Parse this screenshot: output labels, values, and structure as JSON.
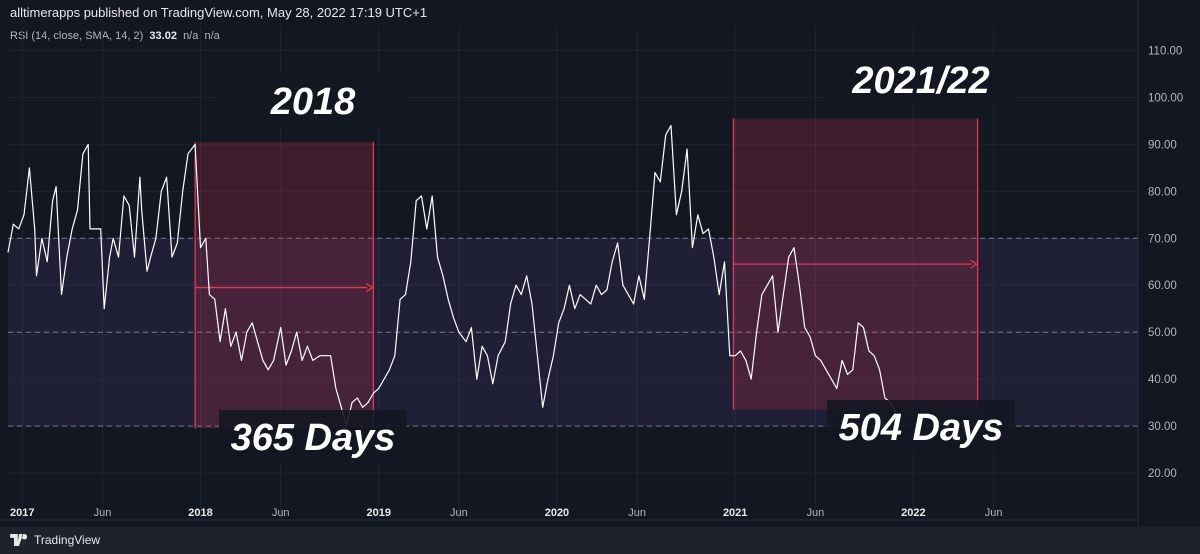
{
  "header": {
    "published": "alltimerapps published on TradingView.com, May 28, 2022 17:19 UTC+1",
    "indicator_label": "RSI (14, close, SMA, 14, 2)",
    "indicator_value": "33.02",
    "indicator_na1": "n/a",
    "indicator_na2": "n/a"
  },
  "footer": {
    "brand": "TradingView"
  },
  "colors": {
    "background": "#131722",
    "band": "#7e57c2",
    "line": "#ffffff",
    "highlight": "#e53950"
  },
  "chart_data": {
    "type": "line",
    "title": "",
    "ylim": [
      10,
      115
    ],
    "yticks": [
      20,
      30,
      40,
      50,
      60,
      70,
      80,
      90,
      100,
      110
    ],
    "ytick_labels": [
      "20.00",
      "30.00",
      "40.00",
      "50.00",
      "60.00",
      "70.00",
      "80.00",
      "90.00",
      "100.00",
      "110.00"
    ],
    "xticks": [
      {
        "x": 2017.0,
        "label": "2017",
        "bold": true
      },
      {
        "x": 2017.45,
        "label": "Jun",
        "bold": false
      },
      {
        "x": 2018.0,
        "label": "2018",
        "bold": true
      },
      {
        "x": 2018.45,
        "label": "Jun",
        "bold": false
      },
      {
        "x": 2019.0,
        "label": "2019",
        "bold": true
      },
      {
        "x": 2019.45,
        "label": "Jun",
        "bold": false
      },
      {
        "x": 2020.0,
        "label": "2020",
        "bold": true
      },
      {
        "x": 2020.45,
        "label": "Jun",
        "bold": false
      },
      {
        "x": 2021.0,
        "label": "2021",
        "bold": true
      },
      {
        "x": 2021.45,
        "label": "Jun",
        "bold": false
      },
      {
        "x": 2022.0,
        "label": "2022",
        "bold": true
      },
      {
        "x": 2022.45,
        "label": "Jun",
        "bold": false
      }
    ],
    "xlim": [
      2016.92,
      2023.26
    ],
    "bands": {
      "upper": 70,
      "middle": 50,
      "lower": 30
    },
    "grid": true,
    "series": [
      {
        "points": [
          [
            2016.92,
            67
          ],
          [
            2016.95,
            73
          ],
          [
            2016.98,
            72
          ],
          [
            2017.01,
            75
          ],
          [
            2017.04,
            85
          ],
          [
            2017.07,
            72
          ],
          [
            2017.08,
            62
          ],
          [
            2017.11,
            70
          ],
          [
            2017.14,
            65
          ],
          [
            2017.17,
            78
          ],
          [
            2017.19,
            81
          ],
          [
            2017.22,
            58
          ],
          [
            2017.25,
            66
          ],
          [
            2017.28,
            72
          ],
          [
            2017.31,
            76
          ],
          [
            2017.34,
            88
          ],
          [
            2017.37,
            90
          ],
          [
            2017.38,
            72
          ],
          [
            2017.41,
            72
          ],
          [
            2017.44,
            72
          ],
          [
            2017.46,
            55
          ],
          [
            2017.49,
            66
          ],
          [
            2017.51,
            70
          ],
          [
            2017.54,
            66
          ],
          [
            2017.57,
            79
          ],
          [
            2017.6,
            77
          ],
          [
            2017.63,
            66
          ],
          [
            2017.66,
            83
          ],
          [
            2017.67,
            76
          ],
          [
            2017.7,
            63
          ],
          [
            2017.72,
            66
          ],
          [
            2017.75,
            70
          ],
          [
            2017.78,
            80
          ],
          [
            2017.81,
            83
          ],
          [
            2017.84,
            66
          ],
          [
            2017.87,
            69
          ],
          [
            2017.9,
            80
          ],
          [
            2017.93,
            88
          ],
          [
            2017.97,
            90
          ],
          [
            2018.0,
            68
          ],
          [
            2018.03,
            70
          ],
          [
            2018.05,
            58
          ],
          [
            2018.08,
            57
          ],
          [
            2018.11,
            48
          ],
          [
            2018.14,
            55
          ],
          [
            2018.17,
            47
          ],
          [
            2018.2,
            50
          ],
          [
            2018.23,
            44
          ],
          [
            2018.26,
            50
          ],
          [
            2018.29,
            52
          ],
          [
            2018.32,
            48
          ],
          [
            2018.35,
            44
          ],
          [
            2018.38,
            42
          ],
          [
            2018.41,
            44
          ],
          [
            2018.45,
            51
          ],
          [
            2018.48,
            43
          ],
          [
            2018.51,
            46
          ],
          [
            2018.54,
            50
          ],
          [
            2018.57,
            44
          ],
          [
            2018.6,
            47
          ],
          [
            2018.63,
            44
          ],
          [
            2018.67,
            45
          ],
          [
            2018.7,
            45
          ],
          [
            2018.73,
            45
          ],
          [
            2018.76,
            38
          ],
          [
            2018.79,
            34
          ],
          [
            2018.82,
            30
          ],
          [
            2018.85,
            35
          ],
          [
            2018.88,
            36
          ],
          [
            2018.91,
            34
          ],
          [
            2018.94,
            35
          ],
          [
            2018.97,
            37
          ],
          [
            2019.0,
            38
          ],
          [
            2019.03,
            40
          ],
          [
            2019.06,
            42
          ],
          [
            2019.09,
            45
          ],
          [
            2019.12,
            57
          ],
          [
            2019.15,
            58
          ],
          [
            2019.18,
            65
          ],
          [
            2019.21,
            78
          ],
          [
            2019.24,
            79
          ],
          [
            2019.27,
            72
          ],
          [
            2019.3,
            79
          ],
          [
            2019.33,
            66
          ],
          [
            2019.36,
            62
          ],
          [
            2019.39,
            57
          ],
          [
            2019.42,
            53
          ],
          [
            2019.45,
            50
          ],
          [
            2019.49,
            48
          ],
          [
            2019.52,
            51
          ],
          [
            2019.55,
            40
          ],
          [
            2019.58,
            47
          ],
          [
            2019.61,
            45
          ],
          [
            2019.64,
            39
          ],
          [
            2019.67,
            45
          ],
          [
            2019.71,
            48
          ],
          [
            2019.74,
            56
          ],
          [
            2019.77,
            60
          ],
          [
            2019.8,
            58
          ],
          [
            2019.83,
            62
          ],
          [
            2019.86,
            56
          ],
          [
            2019.89,
            45
          ],
          [
            2019.92,
            34
          ],
          [
            2019.95,
            40
          ],
          [
            2019.98,
            45
          ],
          [
            2020.01,
            52
          ],
          [
            2020.04,
            55
          ],
          [
            2020.07,
            60
          ],
          [
            2020.1,
            55
          ],
          [
            2020.13,
            58
          ],
          [
            2020.16,
            57
          ],
          [
            2020.19,
            56
          ],
          [
            2020.22,
            60
          ],
          [
            2020.25,
            58
          ],
          [
            2020.28,
            59
          ],
          [
            2020.31,
            65
          ],
          [
            2020.34,
            69
          ],
          [
            2020.37,
            60
          ],
          [
            2020.4,
            58
          ],
          [
            2020.43,
            56
          ],
          [
            2020.46,
            62
          ],
          [
            2020.49,
            57
          ],
          [
            2020.52,
            70
          ],
          [
            2020.55,
            84
          ],
          [
            2020.58,
            82
          ],
          [
            2020.61,
            92
          ],
          [
            2020.64,
            94
          ],
          [
            2020.67,
            75
          ],
          [
            2020.7,
            80
          ],
          [
            2020.73,
            89
          ],
          [
            2020.76,
            68
          ],
          [
            2020.79,
            75
          ],
          [
            2020.82,
            71
          ],
          [
            2020.85,
            72
          ],
          [
            2020.88,
            66
          ],
          [
            2020.91,
            58
          ],
          [
            2020.94,
            65
          ],
          [
            2020.97,
            45
          ],
          [
            2021.0,
            45
          ],
          [
            2021.03,
            46
          ],
          [
            2021.06,
            44
          ],
          [
            2021.09,
            40
          ],
          [
            2021.12,
            50
          ],
          [
            2021.15,
            58
          ],
          [
            2021.18,
            60
          ],
          [
            2021.21,
            62
          ],
          [
            2021.24,
            50
          ],
          [
            2021.27,
            58
          ],
          [
            2021.3,
            66
          ],
          [
            2021.33,
            68
          ],
          [
            2021.36,
            60
          ],
          [
            2021.39,
            51
          ],
          [
            2021.42,
            49
          ],
          [
            2021.45,
            45
          ],
          [
            2021.48,
            44
          ],
          [
            2021.51,
            42
          ],
          [
            2021.54,
            40
          ],
          [
            2021.57,
            38
          ],
          [
            2021.6,
            44
          ],
          [
            2021.63,
            41
          ],
          [
            2021.66,
            42
          ],
          [
            2021.69,
            52
          ],
          [
            2021.72,
            51
          ],
          [
            2021.75,
            46
          ],
          [
            2021.78,
            45
          ],
          [
            2021.81,
            42
          ],
          [
            2021.84,
            36
          ],
          [
            2021.87,
            35
          ],
          [
            2021.9,
            33
          ]
        ]
      }
    ]
  },
  "annotations": {
    "box2018": {
      "x_start": 2017.97,
      "x_end": 2018.97,
      "y_top": 90.5,
      "y_bottom": 29.5,
      "arrow_y": 59.5,
      "title": "2018",
      "days": "365 Days"
    },
    "box2021": {
      "x_start": 2020.99,
      "x_end": 2022.36,
      "y_top": 95.5,
      "y_bottom": 33.5,
      "arrow_y": 64.5,
      "title": "2021/22",
      "days": "504 Days"
    }
  }
}
